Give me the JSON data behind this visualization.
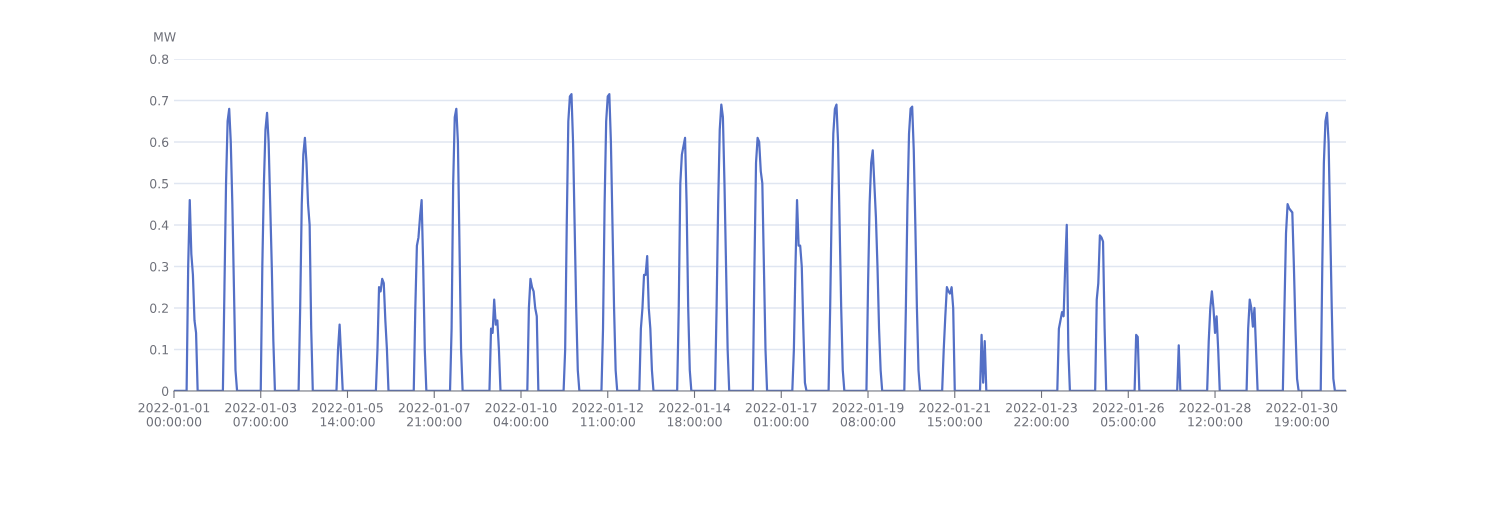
{
  "chart_data": {
    "type": "line",
    "ylabel": "MW",
    "line_style": "solid",
    "grid": "y",
    "xlim": [
      "2022-01-01T00:00",
      "2022-01-31T23:00"
    ],
    "xticks": [
      {
        "value": "2022-01-01T00:00",
        "label": "2022-01-01\n00:00:00"
      },
      {
        "value": "2022-01-03T07:00",
        "label": "2022-01-03\n07:00:00"
      },
      {
        "value": "2022-01-05T14:00",
        "label": "2022-01-05\n14:00:00"
      },
      {
        "value": "2022-01-07T21:00",
        "label": "2022-01-07\n21:00:00"
      },
      {
        "value": "2022-01-10T04:00",
        "label": "2022-01-10\n04:00:00"
      },
      {
        "value": "2022-01-12T11:00",
        "label": "2022-01-12\n11:00:00"
      },
      {
        "value": "2022-01-14T18:00",
        "label": "2022-01-14\n18:00:00"
      },
      {
        "value": "2022-01-17T01:00",
        "label": "2022-01-17\n01:00:00"
      },
      {
        "value": "2022-01-19T08:00",
        "label": "2022-01-19\n08:00:00"
      },
      {
        "value": "2022-01-21T15:00",
        "label": "2022-01-21\n15:00:00"
      },
      {
        "value": "2022-01-23T22:00",
        "label": "2022-01-23\n22:00:00"
      },
      {
        "value": "2022-01-26T05:00",
        "label": "2022-01-26\n05:00:00"
      },
      {
        "value": "2022-01-28T12:00",
        "label": "2022-01-28\n12:00:00"
      },
      {
        "value": "2022-01-30T19:00",
        "label": "2022-01-30\n19:00:00"
      }
    ],
    "ylim": [
      0,
      0.8
    ],
    "yticks": [
      0,
      0.1,
      0.2,
      0.3,
      0.4,
      0.5,
      0.6,
      0.7,
      0.8
    ],
    "series": [
      {
        "color": "#5470c6",
        "x": [
          "2022-01-01T00:00",
          "2022-01-01T08:00",
          "2022-01-01T09:00",
          "2022-01-01T10:00",
          "2022-01-01T11:00",
          "2022-01-01T12:00",
          "2022-01-01T13:00",
          "2022-01-01T14:00",
          "2022-01-01T15:00",
          "2022-01-02T07:00",
          "2022-01-02T08:00",
          "2022-01-02T09:00",
          "2022-01-02T10:00",
          "2022-01-02T11:00",
          "2022-01-02T12:00",
          "2022-01-02T13:00",
          "2022-01-02T14:00",
          "2022-01-02T15:00",
          "2022-01-02T16:00",
          "2022-01-03T07:00",
          "2022-01-03T08:00",
          "2022-01-03T09:00",
          "2022-01-03T10:00",
          "2022-01-03T11:00",
          "2022-01-03T12:00",
          "2022-01-03T13:00",
          "2022-01-03T14:00",
          "2022-01-03T15:00",
          "2022-01-03T16:00",
          "2022-01-04T07:00",
          "2022-01-04T08:00",
          "2022-01-04T09:00",
          "2022-01-04T10:00",
          "2022-01-04T11:00",
          "2022-01-04T12:00",
          "2022-01-04T13:00",
          "2022-01-04T14:00",
          "2022-01-04T15:00",
          "2022-01-04T16:00",
          "2022-01-05T07:00",
          "2022-01-05T08:00",
          "2022-01-05T09:00",
          "2022-01-05T10:00",
          "2022-01-05T11:00",
          "2022-01-06T08:00",
          "2022-01-06T09:00",
          "2022-01-06T10:00",
          "2022-01-06T11:00",
          "2022-01-06T12:00",
          "2022-01-06T13:00",
          "2022-01-06T14:00",
          "2022-01-06T15:00",
          "2022-01-06T16:00",
          "2022-01-07T08:00",
          "2022-01-07T09:00",
          "2022-01-07T10:00",
          "2022-01-07T11:00",
          "2022-01-07T12:00",
          "2022-01-07T13:00",
          "2022-01-07T14:00",
          "2022-01-07T15:00",
          "2022-01-07T16:00",
          "2022-01-08T07:00",
          "2022-01-08T08:00",
          "2022-01-08T09:00",
          "2022-01-08T10:00",
          "2022-01-08T11:00",
          "2022-01-08T12:00",
          "2022-01-08T13:00",
          "2022-01-08T14:00",
          "2022-01-08T15:00",
          "2022-01-09T08:00",
          "2022-01-09T09:00",
          "2022-01-09T10:00",
          "2022-01-09T11:00",
          "2022-01-09T12:00",
          "2022-01-09T13:00",
          "2022-01-09T14:00",
          "2022-01-09T15:00",
          "2022-01-10T08:00",
          "2022-01-10T09:00",
          "2022-01-10T10:00",
          "2022-01-10T11:00",
          "2022-01-10T12:00",
          "2022-01-10T13:00",
          "2022-01-10T14:00",
          "2022-01-10T15:00",
          "2022-01-11T07:00",
          "2022-01-11T08:00",
          "2022-01-11T09:00",
          "2022-01-11T10:00",
          "2022-01-11T11:00",
          "2022-01-11T12:00",
          "2022-01-11T13:00",
          "2022-01-11T14:00",
          "2022-01-11T15:00",
          "2022-01-11T16:00",
          "2022-01-11T17:00",
          "2022-01-12T07:00",
          "2022-01-12T08:00",
          "2022-01-12T09:00",
          "2022-01-12T10:00",
          "2022-01-12T11:00",
          "2022-01-12T12:00",
          "2022-01-12T13:00",
          "2022-01-12T14:00",
          "2022-01-12T15:00",
          "2022-01-12T16:00",
          "2022-01-12T17:00",
          "2022-01-13T07:00",
          "2022-01-13T08:00",
          "2022-01-13T09:00",
          "2022-01-13T10:00",
          "2022-01-13T11:00",
          "2022-01-13T12:00",
          "2022-01-13T13:00",
          "2022-01-13T14:00",
          "2022-01-13T15:00",
          "2022-01-13T16:00",
          "2022-01-14T07:00",
          "2022-01-14T08:00",
          "2022-01-14T09:00",
          "2022-01-14T10:00",
          "2022-01-14T11:00",
          "2022-01-14T12:00",
          "2022-01-14T13:00",
          "2022-01-14T14:00",
          "2022-01-14T15:00",
          "2022-01-14T16:00",
          "2022-01-15T07:00",
          "2022-01-15T08:00",
          "2022-01-15T09:00",
          "2022-01-15T10:00",
          "2022-01-15T11:00",
          "2022-01-15T12:00",
          "2022-01-15T13:00",
          "2022-01-15T14:00",
          "2022-01-15T15:00",
          "2022-01-15T16:00",
          "2022-01-16T07:00",
          "2022-01-16T08:00",
          "2022-01-16T09:00",
          "2022-01-16T10:00",
          "2022-01-16T11:00",
          "2022-01-16T12:00",
          "2022-01-16T13:00",
          "2022-01-16T14:00",
          "2022-01-16T15:00",
          "2022-01-16T16:00",
          "2022-01-17T08:00",
          "2022-01-17T09:00",
          "2022-01-17T10:00",
          "2022-01-17T11:00",
          "2022-01-17T12:00",
          "2022-01-17T13:00",
          "2022-01-17T14:00",
          "2022-01-17T15:00",
          "2022-01-17T16:00",
          "2022-01-17T17:00",
          "2022-01-18T07:00",
          "2022-01-18T08:00",
          "2022-01-18T09:00",
          "2022-01-18T10:00",
          "2022-01-18T11:00",
          "2022-01-18T12:00",
          "2022-01-18T13:00",
          "2022-01-18T14:00",
          "2022-01-18T15:00",
          "2022-01-18T16:00",
          "2022-01-18T17:00",
          "2022-01-19T07:00",
          "2022-01-19T08:00",
          "2022-01-19T09:00",
          "2022-01-19T10:00",
          "2022-01-19T11:00",
          "2022-01-19T12:00",
          "2022-01-19T13:00",
          "2022-01-19T14:00",
          "2022-01-19T15:00",
          "2022-01-19T16:00",
          "2022-01-19T17:00",
          "2022-01-20T07:00",
          "2022-01-20T08:00",
          "2022-01-20T09:00",
          "2022-01-20T10:00",
          "2022-01-20T11:00",
          "2022-01-20T12:00",
          "2022-01-20T13:00",
          "2022-01-20T14:00",
          "2022-01-20T15:00",
          "2022-01-20T16:00",
          "2022-01-20T17:00",
          "2022-01-21T07:00",
          "2022-01-21T08:00",
          "2022-01-21T09:00",
          "2022-01-21T10:00",
          "2022-01-21T11:00",
          "2022-01-21T12:00",
          "2022-01-21T13:00",
          "2022-01-21T14:00",
          "2022-01-21T15:00",
          "2022-01-22T07:00",
          "2022-01-22T08:00",
          "2022-01-22T09:00",
          "2022-01-22T10:00",
          "2022-01-22T11:00",
          "2022-01-24T08:00",
          "2022-01-24T09:00",
          "2022-01-24T10:00",
          "2022-01-24T11:00",
          "2022-01-24T12:00",
          "2022-01-24T13:00",
          "2022-01-24T14:00",
          "2022-01-24T15:00",
          "2022-01-24T16:00",
          "2022-01-25T08:00",
          "2022-01-25T09:00",
          "2022-01-25T10:00",
          "2022-01-25T11:00",
          "2022-01-25T12:00",
          "2022-01-25T13:00",
          "2022-01-25T14:00",
          "2022-01-25T15:00",
          "2022-01-26T09:00",
          "2022-01-26T10:00",
          "2022-01-26T11:00",
          "2022-01-26T12:00",
          "2022-01-27T12:00",
          "2022-01-27T13:00",
          "2022-01-27T14:00",
          "2022-01-28T07:00",
          "2022-01-28T08:00",
          "2022-01-28T09:00",
          "2022-01-28T10:00",
          "2022-01-28T11:00",
          "2022-01-28T12:00",
          "2022-01-28T13:00",
          "2022-01-28T14:00",
          "2022-01-28T15:00",
          "2022-01-29T08:00",
          "2022-01-29T09:00",
          "2022-01-29T10:00",
          "2022-01-29T11:00",
          "2022-01-29T12:00",
          "2022-01-29T13:00",
          "2022-01-29T14:00",
          "2022-01-29T15:00",
          "2022-01-30T07:00",
          "2022-01-30T08:00",
          "2022-01-30T09:00",
          "2022-01-30T10:00",
          "2022-01-30T11:00",
          "2022-01-30T12:00",
          "2022-01-30T13:00",
          "2022-01-30T14:00",
          "2022-01-30T15:00",
          "2022-01-30T16:00",
          "2022-01-30T17:00",
          "2022-01-31T07:00",
          "2022-01-31T08:00",
          "2022-01-31T09:00",
          "2022-01-31T10:00",
          "2022-01-31T11:00",
          "2022-01-31T12:00",
          "2022-01-31T13:00",
          "2022-01-31T14:00",
          "2022-01-31T15:00",
          "2022-01-31T16:00",
          "2022-01-31T23:00"
        ],
        "values": [
          0,
          0,
          0.3,
          0.46,
          0.33,
          0.28,
          0.17,
          0.14,
          0,
          0,
          0.25,
          0.5,
          0.65,
          0.68,
          0.6,
          0.45,
          0.25,
          0.05,
          0,
          0,
          0.3,
          0.5,
          0.63,
          0.67,
          0.6,
          0.45,
          0.3,
          0.12,
          0,
          0,
          0.2,
          0.45,
          0.57,
          0.61,
          0.55,
          0.45,
          0.4,
          0.15,
          0,
          0,
          0.1,
          0.16,
          0.08,
          0,
          0,
          0.1,
          0.25,
          0.24,
          0.27,
          0.26,
          0.17,
          0.1,
          0,
          0,
          0.2,
          0.35,
          0.37,
          0.42,
          0.46,
          0.3,
          0.1,
          0,
          0,
          0.15,
          0.5,
          0.66,
          0.68,
          0.6,
          0.35,
          0.1,
          0,
          0,
          0.15,
          0.14,
          0.22,
          0.16,
          0.17,
          0.1,
          0,
          0,
          0.2,
          0.27,
          0.25,
          0.24,
          0.2,
          0.18,
          0,
          0,
          0.1,
          0.4,
          0.65,
          0.71,
          0.715,
          0.6,
          0.4,
          0.2,
          0.05,
          0,
          0,
          0.15,
          0.45,
          0.65,
          0.71,
          0.715,
          0.6,
          0.4,
          0.2,
          0.05,
          0,
          0,
          0.15,
          0.2,
          0.28,
          0.28,
          0.325,
          0.2,
          0.15,
          0.05,
          0,
          0,
          0.2,
          0.5,
          0.57,
          0.59,
          0.61,
          0.45,
          0.2,
          0.05,
          0,
          0,
          0.2,
          0.45,
          0.63,
          0.69,
          0.66,
          0.5,
          0.3,
          0.1,
          0,
          0,
          0.3,
          0.55,
          0.61,
          0.6,
          0.53,
          0.5,
          0.3,
          0.1,
          0,
          0,
          0.1,
          0.3,
          0.46,
          0.35,
          0.35,
          0.3,
          0.15,
          0.02,
          0,
          0,
          0.2,
          0.45,
          0.62,
          0.68,
          0.69,
          0.6,
          0.4,
          0.2,
          0.05,
          0,
          0,
          0.25,
          0.45,
          0.55,
          0.58,
          0.5,
          0.42,
          0.3,
          0.15,
          0.05,
          0,
          0,
          0.2,
          0.45,
          0.62,
          0.68,
          0.685,
          0.58,
          0.4,
          0.2,
          0.05,
          0,
          0,
          0.1,
          0.18,
          0.25,
          0.24,
          0.235,
          0.25,
          0.2,
          0,
          0,
          0.135,
          0.02,
          0.12,
          0,
          0,
          0.15,
          0.17,
          0.19,
          0.18,
          0.3,
          0.4,
          0.1,
          0,
          0,
          0.22,
          0.26,
          0.375,
          0.37,
          0.36,
          0.15,
          0,
          0,
          0.135,
          0.13,
          0,
          0,
          0.11,
          0,
          0,
          0.12,
          0.2,
          0.24,
          0.2,
          0.14,
          0.18,
          0.1,
          0,
          0,
          0.15,
          0.22,
          0.2,
          0.155,
          0.2,
          0.1,
          0,
          0,
          0.2,
          0.38,
          0.45,
          0.44,
          0.435,
          0.43,
          0.3,
          0.15,
          0.03,
          0,
          0,
          0.3,
          0.55,
          0.65,
          0.67,
          0.6,
          0.4,
          0.2,
          0.03,
          0,
          0
        ]
      }
    ]
  }
}
